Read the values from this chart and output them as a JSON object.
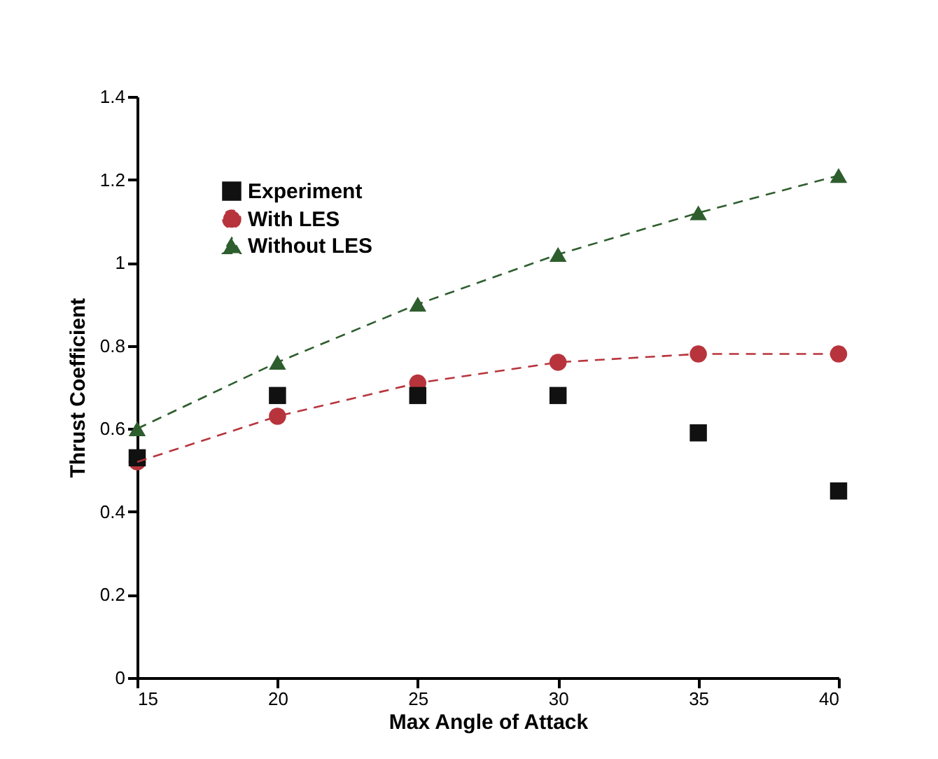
{
  "chart_data": {
    "type": "line",
    "xlabel": "Max Angle of Attack",
    "ylabel": "Thrust Coefficient",
    "x": [
      15,
      20,
      25,
      30,
      35,
      40
    ],
    "series": [
      {
        "name": "Experiment",
        "type": "scatter",
        "marker": "square",
        "color": "#111111",
        "values": [
          0.53,
          0.68,
          0.68,
          0.68,
          0.59,
          0.45
        ]
      },
      {
        "name": "With LES",
        "type": "line",
        "marker": "circle",
        "line_style": "dashed",
        "color": "#b8343c",
        "values": [
          0.52,
          0.63,
          0.71,
          0.76,
          0.78,
          0.78
        ]
      },
      {
        "name": "Without LES",
        "type": "line",
        "marker": "triangle",
        "line_style": "dashed",
        "color": "#2e5e2e",
        "values": [
          0.6,
          0.76,
          0.9,
          1.02,
          1.12,
          1.21
        ]
      }
    ],
    "xlim": [
      15,
      40
    ],
    "xticks": [
      15,
      20,
      25,
      30,
      35,
      40
    ],
    "ylim": [
      0,
      1.4
    ],
    "yticks": [
      0,
      0.2,
      0.4,
      0.6,
      0.8,
      1,
      1.2,
      1.4
    ],
    "grid": false,
    "legend": "top left"
  }
}
